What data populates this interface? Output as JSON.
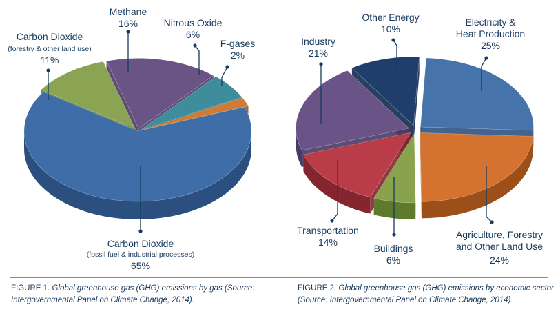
{
  "chart_data": [
    {
      "type": "pie",
      "figure_number": "FIGURE 1.",
      "caption": "Global greenhouse gas (GHG) emissions by gas (Source: Intergovernmental Panel on Climate Change, 2014).",
      "slices": [
        {
          "name": "Carbon Dioxide",
          "sub": "(fossil fuel & industrial processes)",
          "value": 65,
          "label": "65%",
          "color": "#3f6da7",
          "side": "#2b4f7f"
        },
        {
          "name": "Carbon Dioxide",
          "sub": "(forestry & other land use)",
          "value": 11,
          "label": "11%",
          "color": "#8aa454",
          "side": "#5f7a33"
        },
        {
          "name": "Methane",
          "sub": "",
          "value": 16,
          "label": "16%",
          "color": "#6a5486",
          "side": "#4b3a63"
        },
        {
          "name": "Nitrous Oxide",
          "sub": "",
          "value": 6,
          "label": "6%",
          "color": "#3d8d9c",
          "side": "#286470"
        },
        {
          "name": "F-gases",
          "sub": "",
          "value": 2,
          "label": "2%",
          "color": "#d07a36",
          "side": "#9c5520"
        }
      ]
    },
    {
      "type": "pie",
      "figure_number": "FIGURE 2.",
      "caption": "Global greenhouse gas (GHG) emissions by economic sector (Source: Intergovernmental Panel on Climate Change, 2014).",
      "slices": [
        {
          "name": "Electricity &",
          "name2": "Heat Production",
          "value": 25,
          "label": "25%",
          "color": "#4573aa",
          "side": "#2e5382"
        },
        {
          "name": "Agriculture, Forestry",
          "name2": "and Other Land Use",
          "value": 24,
          "label": "24%",
          "color": "#d4722f",
          "side": "#9d4f1a"
        },
        {
          "name": "Buildings",
          "name2": "",
          "value": 6,
          "label": "6%",
          "color": "#89a34c",
          "side": "#5e7a2c"
        },
        {
          "name": "Transportation",
          "name2": "",
          "value": 14,
          "label": "14%",
          "color": "#b93c48",
          "side": "#852530"
        },
        {
          "name": "Industry",
          "name2": "",
          "value": 21,
          "label": "21%",
          "color": "#6a5487",
          "side": "#4a3a63"
        },
        {
          "name": "Other Energy",
          "name2": "",
          "value": 10,
          "label": "10%",
          "color": "#1f3e6c",
          "side": "#132a4c"
        }
      ]
    }
  ]
}
